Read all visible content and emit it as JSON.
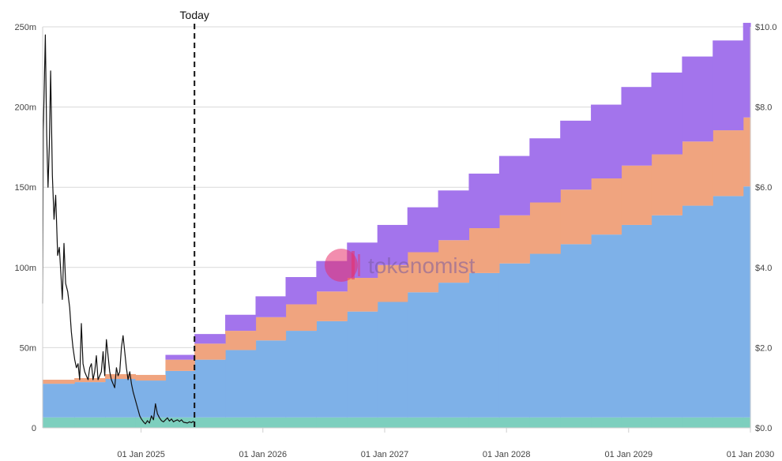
{
  "chart_data": {
    "type": "area",
    "title": "",
    "today_label": "Today",
    "watermark": "tokenomist",
    "x_ticks": [
      "01 Jan 2025",
      "01 Jan 2026",
      "01 Jan 2027",
      "01 Jan 2028",
      "01 Jan 2029",
      "01 Jan 2030"
    ],
    "x_range": [
      "2024-03-12",
      "2030-01-01"
    ],
    "today_date": "2025-06-10",
    "left_axis": {
      "ticks": [
        "0",
        "50m",
        "100m",
        "150m",
        "200m",
        "250m"
      ],
      "tick_values": [
        0,
        50,
        100,
        150,
        200,
        250
      ],
      "ylim": [
        0,
        250
      ],
      "unit": "m"
    },
    "right_axis": {
      "ticks": [
        "$0.0",
        "$2.0",
        "$4.0",
        "$6.0",
        "$8.0",
        "$10.0"
      ],
      "tick_values": [
        0,
        2,
        4,
        6,
        8,
        10
      ],
      "ylim": [
        0,
        10
      ]
    },
    "grid": true,
    "colors": {
      "teal": "#7dcfbe",
      "blue": "#7eb1e8",
      "orange": "#f0a47f",
      "purple": "#a374ec",
      "price": "#111111",
      "today": "#111111"
    },
    "stacked_steps": {
      "dates": [
        "2024-03-12",
        "2024-06-15",
        "2024-09-15",
        "2024-12-15",
        "2025-03-15",
        "2025-06-10",
        "2025-09-10",
        "2025-12-10",
        "2026-03-10",
        "2026-06-10",
        "2026-09-10",
        "2026-12-10",
        "2027-03-10",
        "2027-06-10",
        "2027-09-10",
        "2027-12-10",
        "2028-03-10",
        "2028-06-10",
        "2028-09-10",
        "2028-12-10",
        "2029-03-10",
        "2029-06-10",
        "2029-09-10",
        "2029-12-10",
        "2030-01-01"
      ],
      "series": [
        {
          "key": "teal",
          "values": [
            6.5,
            6.5,
            6.5,
            6.5,
            6.5,
            6.5,
            6.5,
            6.5,
            6.5,
            6.5,
            6.5,
            6.5,
            6.5,
            6.5,
            6.5,
            6.5,
            6.5,
            6.5,
            6.5,
            6.5,
            6.5,
            6.5,
            6.5,
            6.5
          ]
        },
        {
          "key": "blue",
          "values": [
            21,
            22,
            24,
            23,
            29,
            36,
            42,
            48,
            54,
            60,
            66,
            72,
            78,
            84,
            90,
            96,
            102,
            108,
            114,
            120,
            126,
            132,
            138,
            144
          ]
        },
        {
          "key": "orange",
          "values": [
            2.5,
            2.5,
            3,
            3.5,
            7,
            10,
            12,
            14.5,
            16.5,
            18.5,
            21,
            23,
            25,
            26.5,
            28,
            30,
            32,
            34,
            35,
            37,
            38,
            40,
            41,
            43
          ]
        },
        {
          "key": "purple",
          "values": [
            0,
            0,
            0,
            0,
            3,
            6,
            10,
            13,
            17,
            19,
            22,
            25,
            28,
            31,
            34,
            37,
            40,
            43,
            46,
            49,
            51,
            53,
            56,
            59
          ]
        }
      ]
    },
    "price_series": {
      "dates": [
        "2024-03-12",
        "2024-03-14",
        "2024-03-16",
        "2024-03-20",
        "2024-03-24",
        "2024-03-28",
        "2024-04-01",
        "2024-04-05",
        "2024-04-10",
        "2024-04-15",
        "2024-04-20",
        "2024-04-26",
        "2024-05-01",
        "2024-05-06",
        "2024-05-10",
        "2024-05-15",
        "2024-05-20",
        "2024-05-26",
        "2024-06-01",
        "2024-06-06",
        "2024-06-11",
        "2024-06-16",
        "2024-06-21",
        "2024-06-26",
        "2024-07-01",
        "2024-07-06",
        "2024-07-11",
        "2024-07-16",
        "2024-07-21",
        "2024-07-26",
        "2024-07-31",
        "2024-08-05",
        "2024-08-10",
        "2024-08-15",
        "2024-08-20",
        "2024-08-25",
        "2024-08-30",
        "2024-09-04",
        "2024-09-09",
        "2024-09-14",
        "2024-09-19",
        "2024-09-24",
        "2024-09-29",
        "2024-10-04",
        "2024-10-09",
        "2024-10-14",
        "2024-10-19",
        "2024-10-24",
        "2024-10-29",
        "2024-11-03",
        "2024-11-08",
        "2024-11-13",
        "2024-11-18",
        "2024-11-23",
        "2024-11-28",
        "2024-12-03",
        "2024-12-08",
        "2024-12-13",
        "2024-12-18",
        "2024-12-23",
        "2024-12-28",
        "2025-01-02",
        "2025-01-08",
        "2025-01-14",
        "2025-01-20",
        "2025-01-26",
        "2025-02-01",
        "2025-02-07",
        "2025-02-13",
        "2025-02-19",
        "2025-02-25",
        "2025-03-03",
        "2025-03-09",
        "2025-03-15",
        "2025-03-21",
        "2025-03-27",
        "2025-04-02",
        "2025-04-08",
        "2025-04-14",
        "2025-04-20",
        "2025-04-26",
        "2025-05-02",
        "2025-05-08",
        "2025-05-14",
        "2025-05-20",
        "2025-05-26",
        "2025-06-01",
        "2025-06-06",
        "2025-06-10"
      ],
      "values": [
        3.1,
        7.4,
        8.2,
        9.8,
        7.3,
        6.0,
        7.0,
        8.9,
        6.3,
        5.2,
        5.8,
        4.3,
        4.5,
        3.8,
        3.2,
        4.6,
        3.6,
        3.4,
        3.0,
        2.4,
        2.0,
        1.7,
        1.5,
        1.6,
        1.2,
        2.6,
        1.6,
        1.4,
        1.3,
        1.2,
        1.5,
        1.6,
        1.2,
        1.4,
        1.8,
        1.2,
        1.3,
        1.4,
        1.9,
        1.3,
        2.2,
        1.8,
        1.4,
        1.2,
        1.1,
        1.0,
        1.5,
        1.3,
        1.4,
        2.0,
        2.3,
        1.9,
        1.5,
        1.2,
        1.4,
        1.1,
        0.9,
        0.75,
        0.6,
        0.45,
        0.3,
        0.22,
        0.15,
        0.1,
        0.18,
        0.12,
        0.3,
        0.2,
        0.6,
        0.35,
        0.25,
        0.18,
        0.15,
        0.2,
        0.25,
        0.17,
        0.22,
        0.15,
        0.18,
        0.2,
        0.16,
        0.2,
        0.14,
        0.13,
        0.12,
        0.15,
        0.13,
        0.16,
        0.14
      ]
    }
  }
}
